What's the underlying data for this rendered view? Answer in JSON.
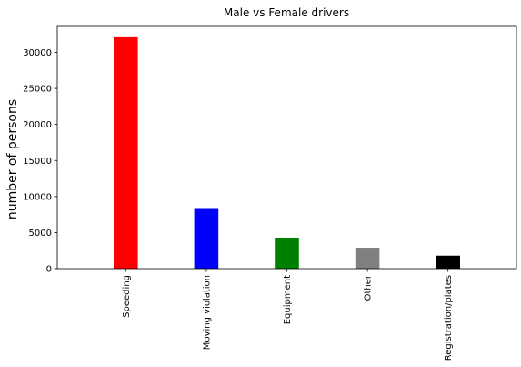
{
  "chart_data": {
    "type": "bar",
    "title": "Male vs Female drivers",
    "xlabel": "",
    "ylabel": "number of persons",
    "categories": [
      "Speeding",
      "Moving violation",
      "Equipment",
      "Other",
      "Registration/plates"
    ],
    "values": [
      32100,
      8400,
      4300,
      2900,
      1800
    ],
    "colors": [
      "#ff0000",
      "#0000ff",
      "#008000",
      "#808080",
      "#000000"
    ],
    "ylim": [
      0,
      33600
    ],
    "yticks": [
      0,
      5000,
      10000,
      15000,
      20000,
      25000,
      30000
    ],
    "grid": false,
    "legend": "none"
  }
}
